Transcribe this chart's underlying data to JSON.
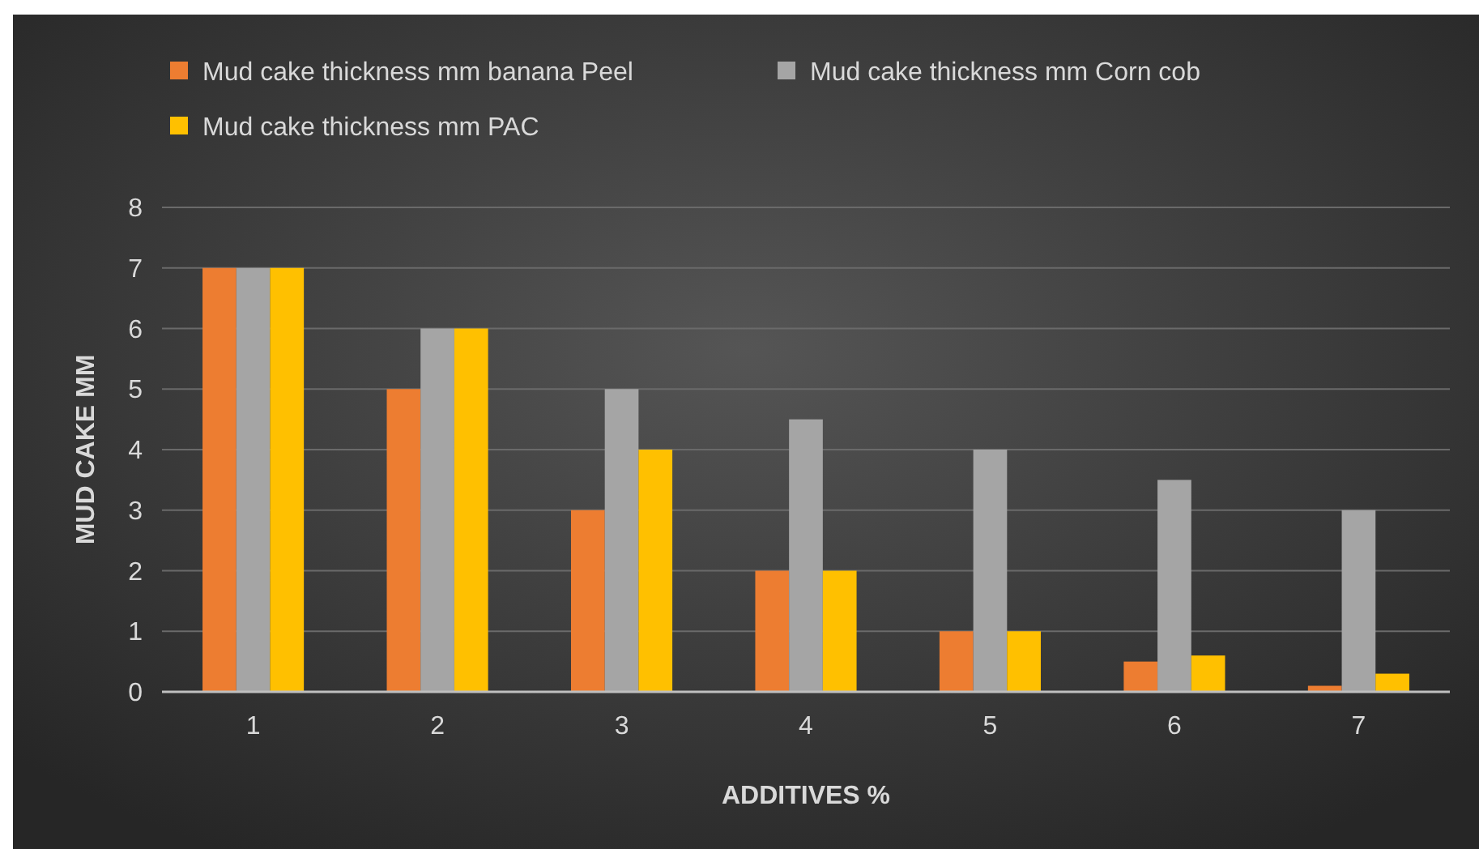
{
  "chart_data": {
    "type": "bar",
    "xlabel": "ADDITIVES %",
    "ylabel": "MUD CAKE MM",
    "categories": [
      "1",
      "2",
      "3",
      "4",
      "5",
      "6",
      "7"
    ],
    "series": [
      {
        "name": "Mud cake thickness mm banana Peel",
        "color": "#ed7d31",
        "values": [
          7,
          5,
          3,
          2,
          1,
          0.5,
          0.1
        ]
      },
      {
        "name": "Mud cake thickness mm Corn cob",
        "color": "#a5a5a5",
        "values": [
          7,
          6,
          5,
          4.5,
          4,
          3.5,
          3
        ]
      },
      {
        "name": "Mud cake thickness mm PAC",
        "color": "#ffc000",
        "values": [
          7,
          6,
          4,
          2,
          1,
          0.6,
          0.3
        ]
      }
    ],
    "ylim": [
      0,
      8
    ],
    "yticks": [
      0,
      1,
      2,
      3,
      4,
      5,
      6,
      7,
      8
    ],
    "grid": "y",
    "legend": "top left"
  }
}
